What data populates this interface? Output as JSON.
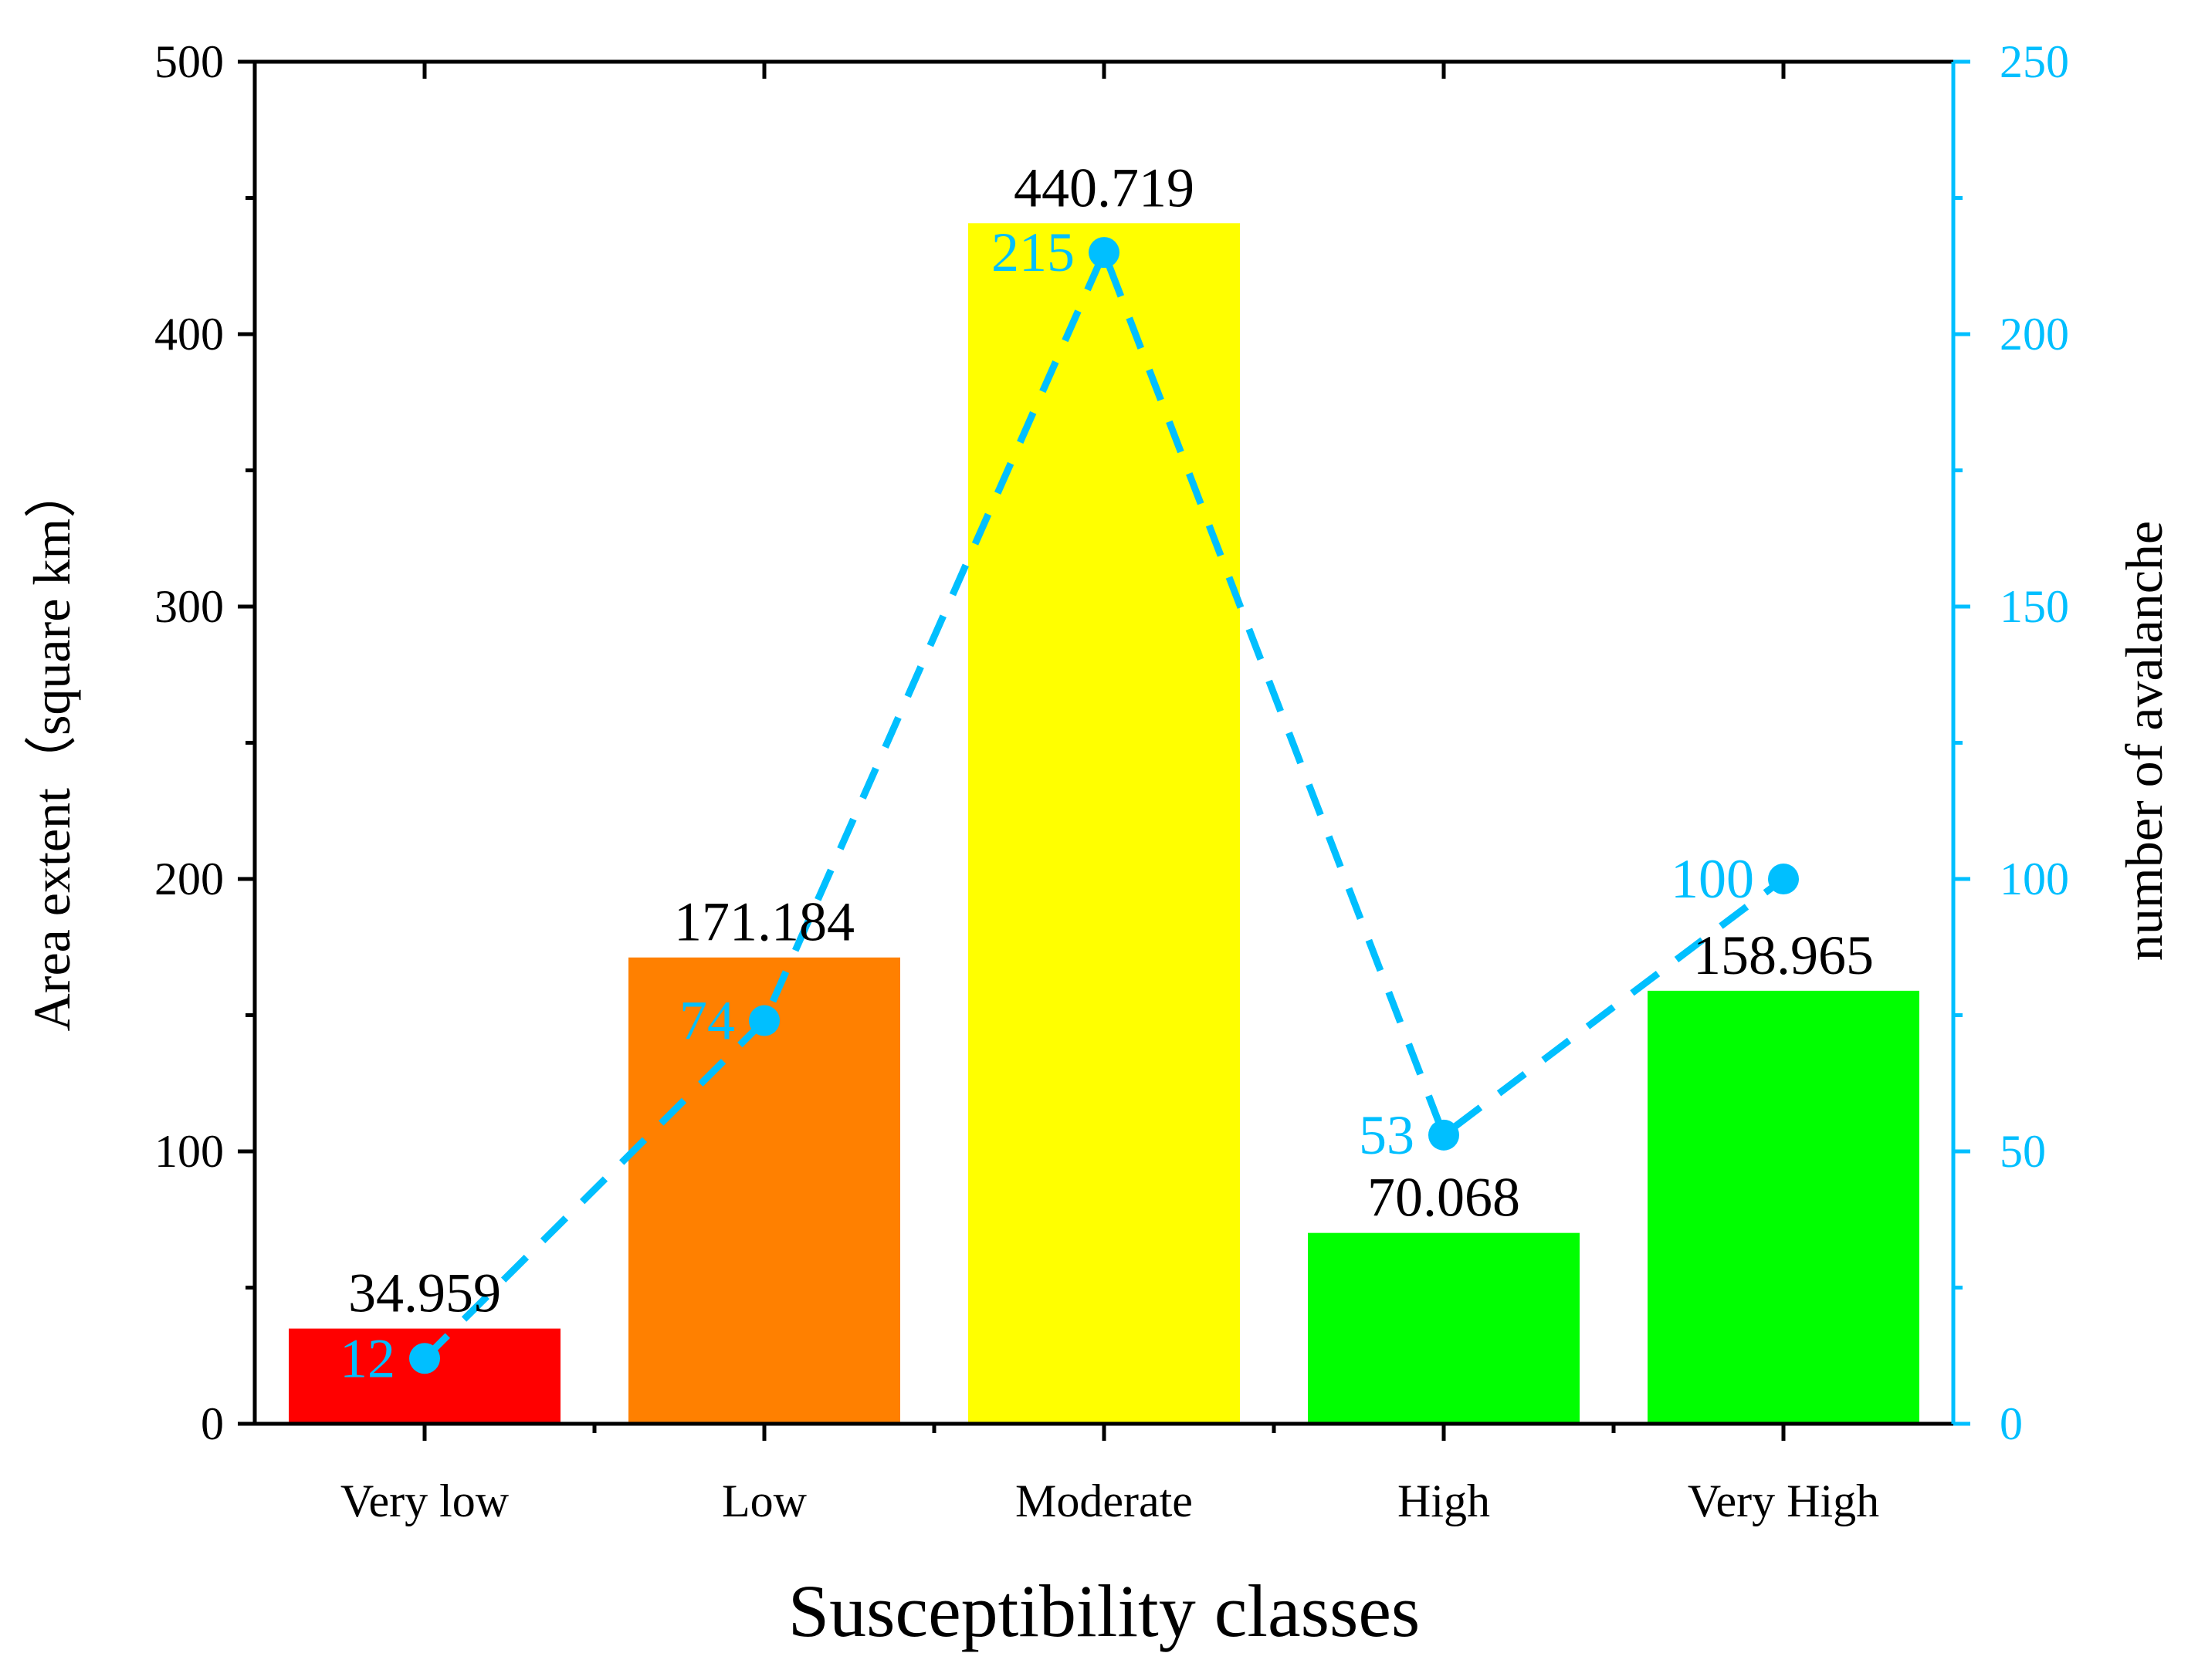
{
  "colors": {
    "axis_left": "#000000",
    "axis_right": "#00bfff",
    "line": "#00bfff",
    "bar_red": "#ff0000",
    "bar_orange": "#ff8000",
    "bar_yellow": "#ffff00",
    "bar_green": "#00ff00"
  },
  "chart_data": {
    "type": "bar",
    "title": "",
    "xlabel": "Susceptibility classes",
    "ylabel": "Area extent（square km）",
    "y2label": "number of avalanche",
    "categories": [
      "Very low",
      "Low",
      "Moderate",
      "High",
      "Very High"
    ],
    "ylim": [
      0,
      500
    ],
    "y2lim": [
      0,
      250
    ],
    "yticks": [
      0,
      100,
      200,
      300,
      400,
      500
    ],
    "y2ticks": [
      0,
      50,
      100,
      150,
      200,
      250
    ],
    "series": [
      {
        "name": "Area extent",
        "kind": "bar",
        "axis": "left",
        "values": [
          34.959,
          171.184,
          440.719,
          70.068,
          158.965
        ],
        "labels": [
          "34.959",
          "171.184",
          "440.719",
          "70.068",
          "158.965"
        ],
        "colors": [
          "#ff0000",
          "#ff8000",
          "#ffff00",
          "#00ff00",
          "#00ff00"
        ]
      },
      {
        "name": "number of avalanche",
        "kind": "line",
        "style": "dashed",
        "marker": "circle",
        "axis": "right",
        "values": [
          12,
          74,
          215,
          53,
          100
        ],
        "labels": [
          "12",
          "74",
          "215",
          "53",
          "100"
        ]
      }
    ],
    "grid": false,
    "legend": "none"
  }
}
